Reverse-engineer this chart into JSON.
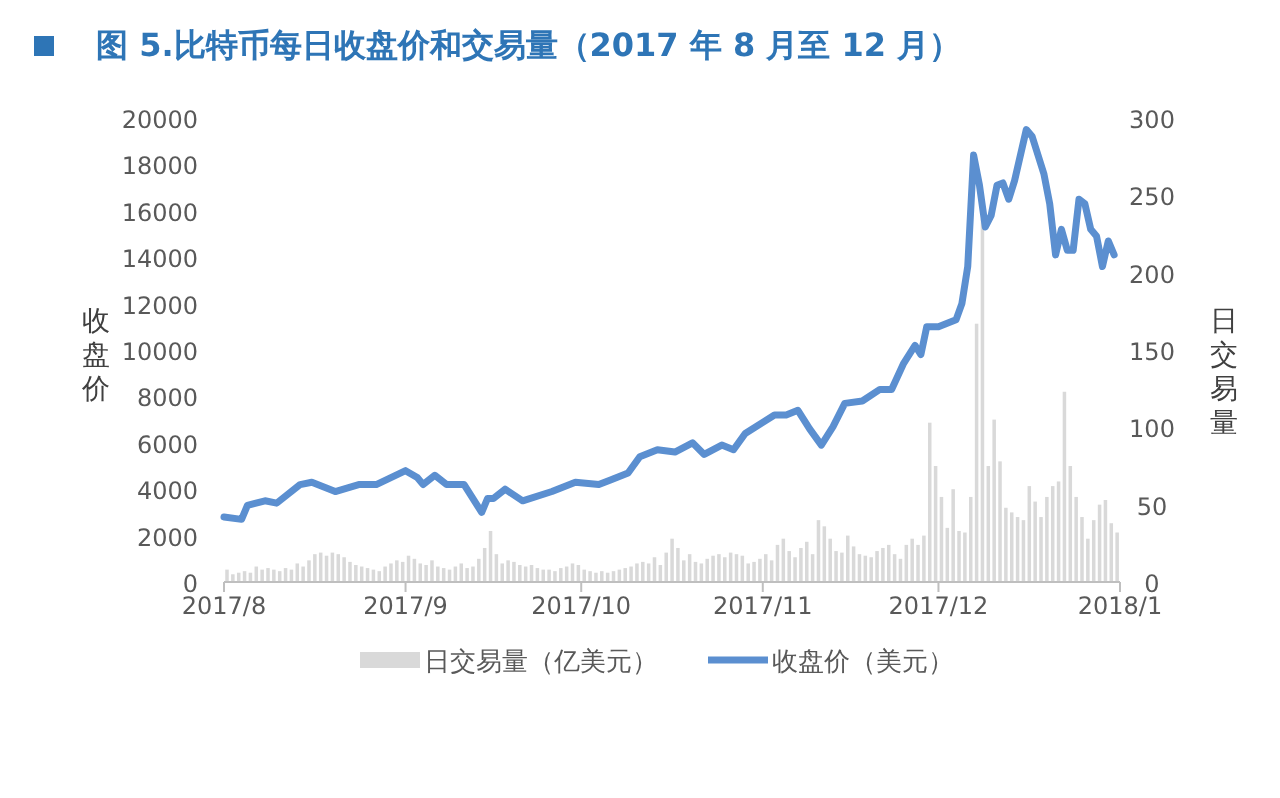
{
  "chart_data": {
    "type": "bar",
    "title": "图 5.比特币每日收盘价和交易量（2017 年 8 月至 12 月）",
    "ylabel": "收盘价",
    "y2label": "日交易量",
    "x": [
      "2017-08-01",
      "2017-08-02",
      "2017-08-03",
      "2017-08-04",
      "2017-08-05",
      "2017-08-06",
      "2017-08-07",
      "2017-08-08",
      "2017-08-09",
      "2017-08-10",
      "2017-08-11",
      "2017-08-12",
      "2017-08-13",
      "2017-08-14",
      "2017-08-15",
      "2017-08-16",
      "2017-08-17",
      "2017-08-18",
      "2017-08-19",
      "2017-08-20",
      "2017-08-21",
      "2017-08-22",
      "2017-08-23",
      "2017-08-24",
      "2017-08-25",
      "2017-08-26",
      "2017-08-27",
      "2017-08-28",
      "2017-08-29",
      "2017-08-30",
      "2017-08-31",
      "2017-09-01",
      "2017-09-02",
      "2017-09-03",
      "2017-09-04",
      "2017-09-05",
      "2017-09-06",
      "2017-09-07",
      "2017-09-08",
      "2017-09-09",
      "2017-09-10",
      "2017-09-11",
      "2017-09-12",
      "2017-09-13",
      "2017-09-14",
      "2017-09-15",
      "2017-09-16",
      "2017-09-17",
      "2017-09-18",
      "2017-09-19",
      "2017-09-20",
      "2017-09-21",
      "2017-09-22",
      "2017-09-23",
      "2017-09-24",
      "2017-09-25",
      "2017-09-26",
      "2017-09-27",
      "2017-09-28",
      "2017-09-29",
      "2017-09-30",
      "2017-10-01",
      "2017-10-02",
      "2017-10-03",
      "2017-10-04",
      "2017-10-05",
      "2017-10-06",
      "2017-10-07",
      "2017-10-08",
      "2017-10-09",
      "2017-10-10",
      "2017-10-11",
      "2017-10-12",
      "2017-10-13",
      "2017-10-14",
      "2017-10-15",
      "2017-10-16",
      "2017-10-17",
      "2017-10-18",
      "2017-10-19",
      "2017-10-20",
      "2017-10-21",
      "2017-10-22",
      "2017-10-23",
      "2017-10-24",
      "2017-10-25",
      "2017-10-26",
      "2017-10-27",
      "2017-10-28",
      "2017-10-29",
      "2017-10-30",
      "2017-10-31",
      "2017-11-01",
      "2017-11-02",
      "2017-11-03",
      "2017-11-04",
      "2017-11-05",
      "2017-11-06",
      "2017-11-07",
      "2017-11-08",
      "2017-11-09",
      "2017-11-10",
      "2017-11-11",
      "2017-11-12",
      "2017-11-13",
      "2017-11-14",
      "2017-11-15",
      "2017-11-16",
      "2017-11-17",
      "2017-11-18",
      "2017-11-19",
      "2017-11-20",
      "2017-11-21",
      "2017-11-22",
      "2017-11-23",
      "2017-11-24",
      "2017-11-25",
      "2017-11-26",
      "2017-11-27",
      "2017-11-28",
      "2017-11-29",
      "2017-11-30",
      "2017-12-01",
      "2017-12-02",
      "2017-12-03",
      "2017-12-04",
      "2017-12-05",
      "2017-12-06",
      "2017-12-07",
      "2017-12-08",
      "2017-12-09",
      "2017-12-10",
      "2017-12-11",
      "2017-12-12",
      "2017-12-13",
      "2017-12-14",
      "2017-12-15",
      "2017-12-16",
      "2017-12-17",
      "2017-12-18",
      "2017-12-19",
      "2017-12-20",
      "2017-12-21",
      "2017-12-22",
      "2017-12-23",
      "2017-12-24",
      "2017-12-25",
      "2017-12-26",
      "2017-12-27",
      "2017-12-28",
      "2017-12-29",
      "2017-12-30",
      "2017-12-31"
    ],
    "series": [
      {
        "name": "日交易量（亿美元）",
        "axis": "y2",
        "color": "#d9d9d9",
        "values": [
          8,
          5,
          6,
          7,
          6,
          10,
          8,
          9,
          8,
          7,
          9,
          8,
          12,
          10,
          14,
          18,
          19,
          17,
          19,
          18,
          16,
          13,
          11,
          10,
          9,
          8,
          7,
          10,
          12,
          14,
          13,
          17,
          15,
          12,
          11,
          14,
          10,
          9,
          8,
          10,
          12,
          9,
          10,
          15,
          22,
          33,
          18,
          12,
          14,
          13,
          11,
          10,
          11,
          9,
          8,
          8,
          7,
          9,
          10,
          12,
          11,
          8,
          7,
          6,
          7,
          6,
          7,
          8,
          9,
          10,
          12,
          13,
          12,
          16,
          11,
          19,
          28,
          22,
          14,
          18,
          13,
          12,
          15,
          17,
          18,
          16,
          19,
          18,
          17,
          12,
          13,
          15,
          18,
          14,
          24,
          28,
          20,
          16,
          22,
          26,
          18,
          40,
          36,
          28,
          20,
          19,
          30,
          23,
          18,
          17,
          16,
          20,
          22,
          24,
          18,
          15,
          24,
          28,
          24,
          30,
          103,
          75,
          55,
          35,
          60,
          33,
          32,
          55,
          167,
          235,
          75,
          105,
          78,
          48,
          45,
          42,
          40,
          62,
          52,
          42,
          55,
          62,
          65,
          123,
          75,
          55,
          42,
          28,
          40,
          50,
          53,
          38,
          32
        ]
      },
      {
        "name": "收盘价（美元）",
        "type": "line",
        "color": "#5b8fd0",
        "x": [
          "2017-08-01",
          "2017-08-04",
          "2017-08-05",
          "2017-08-08",
          "2017-08-10",
          "2017-08-14",
          "2017-08-16",
          "2017-08-20",
          "2017-08-24",
          "2017-08-27",
          "2017-09-01",
          "2017-09-03",
          "2017-09-04",
          "2017-09-06",
          "2017-09-08",
          "2017-09-11",
          "2017-09-12",
          "2017-09-14",
          "2017-09-15",
          "2017-09-16",
          "2017-09-18",
          "2017-09-21",
          "2017-09-26",
          "2017-09-30",
          "2017-10-04",
          "2017-10-06",
          "2017-10-09",
          "2017-10-11",
          "2017-10-14",
          "2017-10-17",
          "2017-10-20",
          "2017-10-22",
          "2017-10-25",
          "2017-10-27",
          "2017-10-29",
          "2017-11-03",
          "2017-11-05",
          "2017-11-07",
          "2017-11-09",
          "2017-11-11",
          "2017-11-13",
          "2017-11-15",
          "2017-11-18",
          "2017-11-21",
          "2017-11-23",
          "2017-11-25",
          "2017-11-27",
          "2017-11-28",
          "2017-11-29",
          "2017-12-01",
          "2017-12-04",
          "2017-12-05",
          "2017-12-06",
          "2017-12-07",
          "2017-12-08",
          "2017-12-09",
          "2017-12-10",
          "2017-12-11",
          "2017-12-12",
          "2017-12-13",
          "2017-12-14",
          "2017-12-16",
          "2017-12-17",
          "2017-12-19",
          "2017-12-20",
          "2017-12-21",
          "2017-12-22",
          "2017-12-23",
          "2017-12-24",
          "2017-12-25",
          "2017-12-26",
          "2017-12-27",
          "2017-12-28",
          "2017-12-29",
          "2017-12-30",
          "2017-12-31"
        ],
        "values": [
          2800,
          2700,
          3300,
          3500,
          3400,
          4200,
          4300,
          3900,
          4200,
          4200,
          4800,
          4500,
          4200,
          4600,
          4200,
          4200,
          3800,
          3000,
          3600,
          3600,
          4000,
          3500,
          3900,
          4300,
          4200,
          4400,
          4700,
          5400,
          5700,
          5600,
          6000,
          5500,
          5900,
          5700,
          6400,
          7200,
          7200,
          7400,
          6600,
          5900,
          6700,
          7700,
          7800,
          8300,
          8300,
          9400,
          10200,
          9800,
          11000,
          11000,
          11300,
          12000,
          13600,
          18400,
          17100,
          15300,
          15800,
          17100,
          17200,
          16500,
          17300,
          19500,
          19200,
          17600,
          16300,
          14100,
          15200,
          14300,
          14300,
          16500,
          16300,
          15200,
          14900,
          13600,
          14700,
          14100
        ]
      }
    ],
    "xlim": [
      "2017-08-01",
      "2018-01-01"
    ],
    "xticks": [
      {
        "value": "2017-08-01",
        "label": "2017/8"
      },
      {
        "value": "2017-09-01",
        "label": "2017/9"
      },
      {
        "value": "2017-10-01",
        "label": "2017/10"
      },
      {
        "value": "2017-11-01",
        "label": "2017/11"
      },
      {
        "value": "2017-12-01",
        "label": "2017/12"
      },
      {
        "value": "2018-01-01",
        "label": "2018/1"
      }
    ],
    "ylim": [
      0,
      20000
    ],
    "yticks": [
      0,
      2000,
      4000,
      6000,
      8000,
      10000,
      12000,
      14000,
      16000,
      18000,
      20000
    ],
    "y2lim": [
      0,
      300
    ],
    "y2ticks": [
      0,
      50,
      100,
      150,
      200,
      250,
      300
    ],
    "legend": "bottom",
    "grid": false
  }
}
